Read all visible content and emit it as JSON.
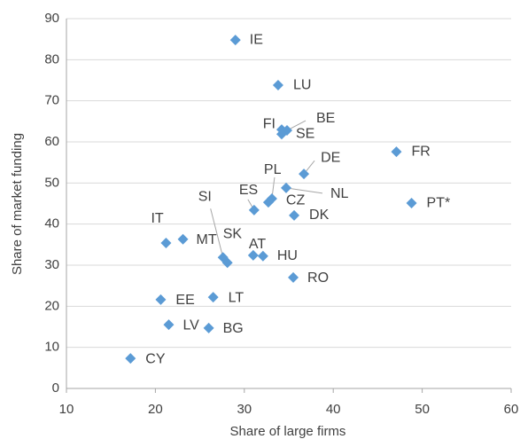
{
  "chart_data": {
    "type": "scatter",
    "xlabel": "Share of large firms",
    "ylabel": "Share of market funding",
    "color": "#5b9bd5",
    "labels": [
      "IE",
      "LU",
      "FI",
      "BE",
      "SE",
      "FR",
      "DE",
      "NL",
      "PL",
      "CZ",
      "ES",
      "DK",
      "PT*",
      "IT",
      "MT",
      "SI",
      "SK",
      "AT",
      "HU",
      "RO",
      "EE",
      "LT",
      "LV",
      "BG",
      "CY"
    ],
    "x": [
      29.0,
      33.8,
      34.2,
      34.8,
      34.2,
      47.1,
      36.7,
      34.7,
      33.1,
      32.7,
      31.1,
      35.6,
      48.8,
      21.2,
      23.1,
      27.6,
      28.1,
      31.0,
      32.1,
      35.5,
      20.6,
      26.5,
      21.5,
      26.0,
      17.2
    ],
    "values": [
      84.8,
      73.8,
      63.0,
      62.8,
      61.9,
      57.6,
      52.2,
      48.8,
      46.2,
      45.3,
      43.4,
      42.1,
      45.1,
      35.4,
      36.3,
      31.9,
      30.6,
      32.4,
      32.2,
      27.0,
      21.6,
      22.2,
      15.5,
      14.7,
      7.3
    ],
    "xlim": [
      10,
      60
    ],
    "xticks": [
      10,
      20,
      30,
      40,
      50,
      60
    ],
    "ylim": [
      0,
      90
    ],
    "yticks": [
      0,
      10,
      20,
      30,
      40,
      50,
      60,
      70,
      80,
      90
    ],
    "grid": true
  }
}
